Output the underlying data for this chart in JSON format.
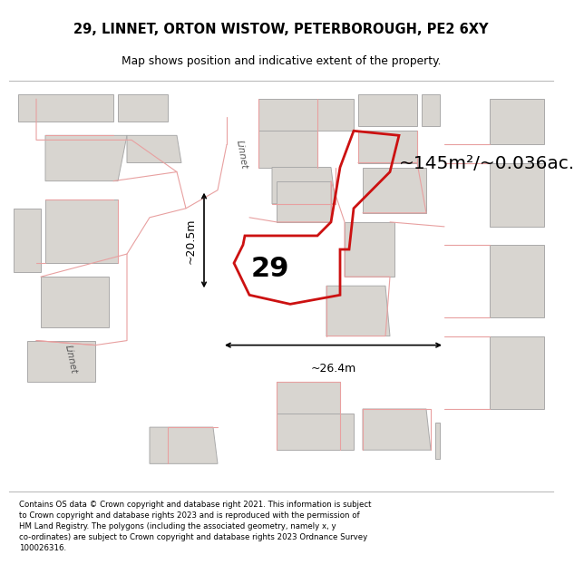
{
  "title": "29, LINNET, ORTON WISTOW, PETERBOROUGH, PE2 6XY",
  "subtitle": "Map shows position and indicative extent of the property.",
  "footer": "Contains OS data © Crown copyright and database right 2021. This information is subject\nto Crown copyright and database rights 2023 and is reproduced with the permission of\nHM Land Registry. The polygons (including the associated geometry, namely x, y\nco-ordinates) are subject to Crown copyright and database rights 2023 Ordnance Survey\n100026316.",
  "bg_color": "#f7f4f0",
  "road_color": "#ffffff",
  "building_color": "#d8d5d0",
  "highlight_edge": "#cc1111",
  "highlight_fill": "none",
  "pink_line": "#e8a0a0",
  "area_text": "~145m²/~0.036ac.",
  "label_29": "29",
  "dim_width": "~26.4m",
  "dim_height": "~20.5m",
  "road_label": "Linnet"
}
